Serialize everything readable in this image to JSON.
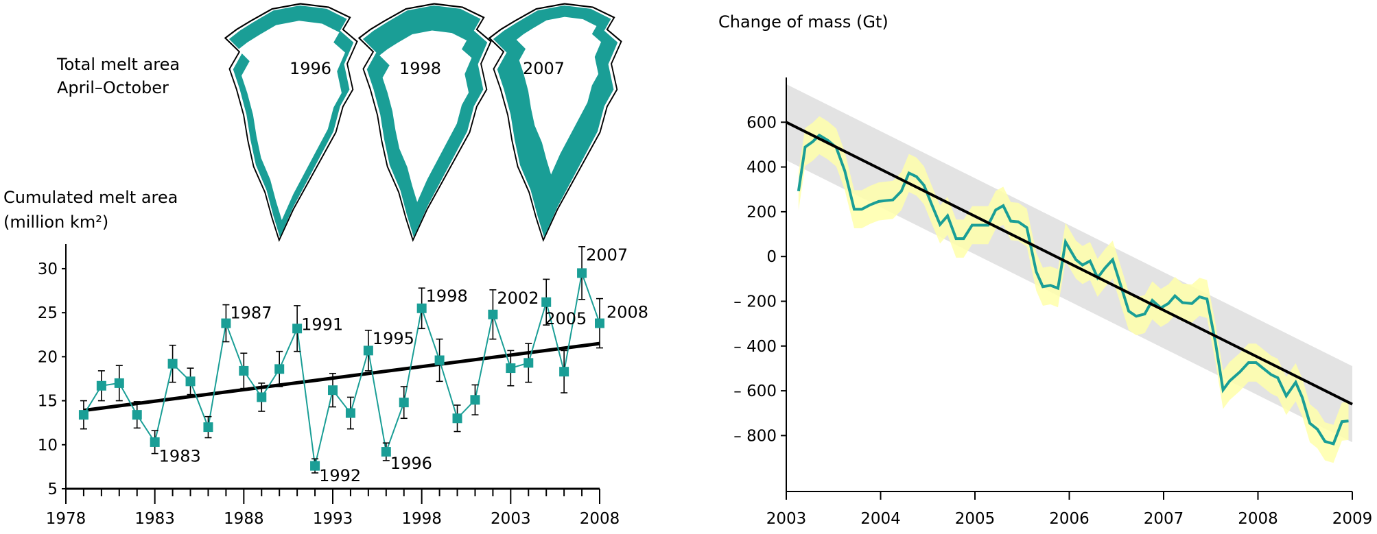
{
  "colors": {
    "series": "#1a9e96",
    "trend": "#000000",
    "uncertainty": "#ffffaa",
    "range_band": "#e3e3e3",
    "coast": "#000000"
  },
  "maps": {
    "title_line1": "Total melt area",
    "title_line2": "April–October",
    "items": [
      {
        "year_label": "1996",
        "melt_extent": "low"
      },
      {
        "year_label": "1998",
        "melt_extent": "medium"
      },
      {
        "year_label": "2007",
        "melt_extent": "high"
      }
    ]
  },
  "chart_data": [
    {
      "type": "line",
      "ylabel_line1": "Cumulated melt area",
      "ylabel_line2": "(million km²)",
      "xlim": [
        1978,
        2008
      ],
      "ylim": [
        5,
        32.8
      ],
      "xticks": [
        "1978",
        "1983",
        "1988",
        "1993",
        "1998",
        "2003",
        "2008"
      ],
      "yticks": [
        "5",
        "10",
        "15",
        "20",
        "25",
        "30"
      ],
      "x": [
        1979,
        1980,
        1981,
        1982,
        1983,
        1984,
        1985,
        1986,
        1987,
        1988,
        1989,
        1990,
        1991,
        1992,
        1993,
        1994,
        1995,
        1996,
        1997,
        1998,
        1999,
        2000,
        2001,
        2002,
        2003,
        2004,
        2005,
        2006,
        2007,
        2008
      ],
      "values": [
        13.4,
        16.7,
        17.0,
        13.4,
        10.3,
        19.2,
        17.2,
        12.0,
        23.8,
        18.4,
        15.4,
        18.6,
        23.2,
        7.6,
        16.2,
        13.6,
        20.7,
        9.2,
        14.8,
        25.5,
        19.6,
        13.0,
        15.1,
        24.8,
        18.7,
        19.3,
        26.2,
        18.3,
        29.5,
        23.8
      ],
      "errors": [
        1.6,
        1.7,
        2.0,
        1.5,
        1.3,
        2.1,
        1.5,
        1.2,
        2.1,
        2.0,
        1.6,
        2.0,
        2.6,
        0.8,
        1.9,
        1.8,
        2.3,
        1.0,
        1.8,
        2.3,
        2.4,
        1.5,
        1.7,
        2.8,
        2.0,
        2.2,
        2.6,
        2.4,
        3.0,
        2.8
      ],
      "trend": {
        "x": [
          1979,
          2008
        ],
        "y": [
          13.9,
          21.5
        ]
      },
      "annotations": [
        {
          "year": 1983,
          "text": "1983",
          "pos": "below"
        },
        {
          "year": 1987,
          "text": "1987",
          "pos": "above"
        },
        {
          "year": 1991,
          "text": "1991",
          "pos": "right"
        },
        {
          "year": 1992,
          "text": "1992",
          "pos": "below"
        },
        {
          "year": 1995,
          "text": "1995",
          "pos": "above"
        },
        {
          "year": 1996,
          "text": "1996",
          "pos": "below"
        },
        {
          "year": 1998,
          "text": "1998",
          "pos": "above"
        },
        {
          "year": 2002,
          "text": "2002",
          "pos": "above"
        },
        {
          "year": 2005,
          "text": "2005",
          "pos": "right"
        },
        {
          "year": 2007,
          "text": "2007",
          "pos": "above"
        },
        {
          "year": 2008,
          "text": "2008",
          "pos": "aboveright"
        }
      ],
      "grid": false
    },
    {
      "type": "line",
      "ylabel": "Change of mass (Gt)",
      "xlim": [
        2003,
        2009
      ],
      "ylim": [
        -1050,
        800
      ],
      "xticks": [
        "2003",
        "2004",
        "2005",
        "2006",
        "2007",
        "2008",
        "2009"
      ],
      "yticks": [
        {
          "v": 600,
          "t": "600"
        },
        {
          "v": 400,
          "t": "400"
        },
        {
          "v": 200,
          "t": "200"
        },
        {
          "v": 0,
          "t": "0"
        },
        {
          "v": -200,
          "t": "– 200"
        },
        {
          "v": -400,
          "t": "– 400"
        },
        {
          "v": -600,
          "t": "– 600"
        },
        {
          "v": -800,
          "t": "– 800"
        }
      ],
      "x": [
        2003.13,
        2003.2,
        2003.28,
        2003.35,
        2003.44,
        2003.53,
        2003.62,
        2003.72,
        2003.8,
        2003.89,
        2003.98,
        2004.06,
        2004.13,
        2004.22,
        2004.3,
        2004.38,
        2004.46,
        2004.54,
        2004.63,
        2004.71,
        2004.8,
        2004.88,
        2004.97,
        2005.05,
        2005.14,
        2005.22,
        2005.3,
        2005.38,
        2005.46,
        2005.55,
        2005.65,
        2005.72,
        2005.8,
        2005.88,
        2005.96,
        2006.07,
        2006.14,
        2006.22,
        2006.3,
        2006.38,
        2006.46,
        2006.55,
        2006.63,
        2006.71,
        2006.8,
        2006.88,
        2006.97,
        2007.05,
        2007.12,
        2007.2,
        2007.3,
        2007.38,
        2007.46,
        2007.55,
        2007.63,
        2007.7,
        2007.81,
        2007.9,
        2007.98,
        2008.06,
        2008.14,
        2008.21,
        2008.3,
        2008.4,
        2008.47,
        2008.55,
        2008.63,
        2008.71,
        2008.8,
        2008.89,
        2008.96
      ],
      "values": [
        292,
        489,
        513,
        542,
        519,
        487,
        383,
        211,
        211,
        231,
        246,
        250,
        253,
        292,
        373,
        357,
        318,
        234,
        143,
        182,
        80,
        80,
        140,
        140,
        140,
        208,
        227,
        158,
        155,
        129,
        -68,
        -135,
        -129,
        -142,
        65,
        -14,
        -38,
        -20,
        -95,
        -51,
        -14,
        -135,
        -244,
        -267,
        -257,
        -196,
        -230,
        -210,
        -176,
        -206,
        -210,
        -180,
        -190,
        -386,
        -596,
        -556,
        -515,
        -474,
        -474,
        -501,
        -528,
        -542,
        -623,
        -562,
        -630,
        -745,
        -772,
        -826,
        -837,
        -738,
        -735
      ],
      "uncertainty": 85,
      "trend": {
        "x": [
          2003,
          2009
        ],
        "y": [
          600,
          -660
        ]
      },
      "trend_band": 170,
      "grid": false
    }
  ]
}
